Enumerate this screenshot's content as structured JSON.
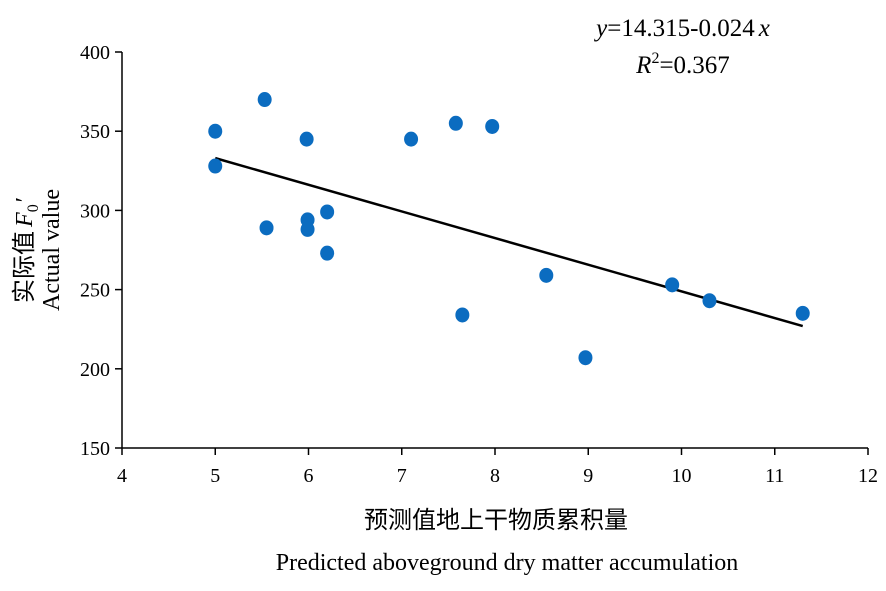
{
  "chart_data": {
    "type": "scatter",
    "title": "",
    "xlabel_cn": "预测值地上干物质累积量",
    "xlabel_en": "Predicted aboveground dry matter accumulation",
    "ylabel_cn": "实际值",
    "ylabel_var": "F",
    "ylabel_sub": "0",
    "ylabel_prime": "′",
    "ylabel_en": "Actual value",
    "xlim": [
      4,
      12
    ],
    "ylim": [
      150,
      400
    ],
    "x_ticks": [
      "4",
      "5",
      "6",
      "7",
      "8",
      "9",
      "10",
      "11",
      "12"
    ],
    "y_ticks": [
      "150",
      "200",
      "250",
      "300",
      "350",
      "400"
    ],
    "equation": {
      "y_var": "y",
      "formula": "=14.315-0.024",
      "x_var": "x",
      "r2_var": "R",
      "r2_sup": "2",
      "r2_value": "=0.367"
    },
    "points": [
      {
        "x": 5.0,
        "y": 350
      },
      {
        "x": 5.0,
        "y": 328
      },
      {
        "x": 5.53,
        "y": 370
      },
      {
        "x": 5.55,
        "y": 289
      },
      {
        "x": 5.98,
        "y": 345
      },
      {
        "x": 5.99,
        "y": 294
      },
      {
        "x": 5.99,
        "y": 288
      },
      {
        "x": 6.2,
        "y": 299
      },
      {
        "x": 6.2,
        "y": 273
      },
      {
        "x": 7.1,
        "y": 345
      },
      {
        "x": 7.58,
        "y": 355
      },
      {
        "x": 7.65,
        "y": 234
      },
      {
        "x": 7.97,
        "y": 353
      },
      {
        "x": 8.55,
        "y": 259
      },
      {
        "x": 8.97,
        "y": 207
      },
      {
        "x": 9.9,
        "y": 253
      },
      {
        "x": 10.3,
        "y": 243
      },
      {
        "x": 11.3,
        "y": 235
      }
    ],
    "trendline": {
      "x": [
        5.0,
        11.3
      ],
      "y": [
        333,
        227
      ]
    },
    "legend": "none",
    "grid": false
  }
}
